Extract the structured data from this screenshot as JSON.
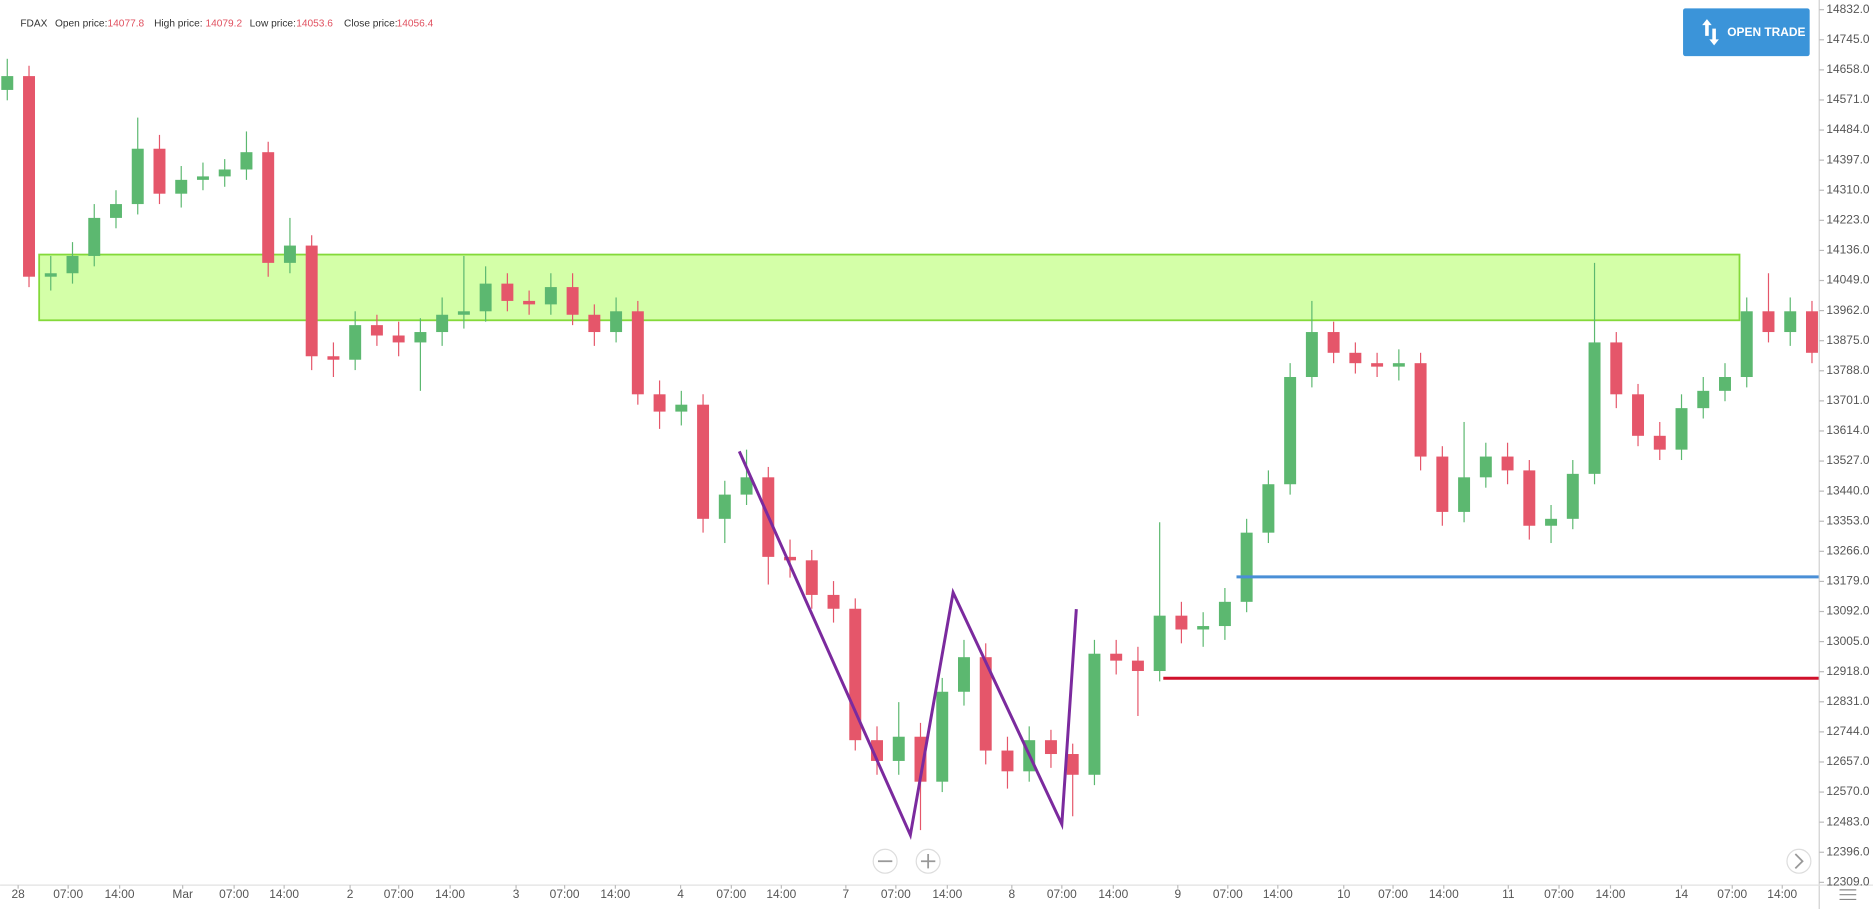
{
  "header": {
    "symbol": "FDAX",
    "open_label": "Open price:",
    "open": 14077.8,
    "high_label": "High price:",
    "high": 14079.2,
    "low_label": "Low price:",
    "low": 14053.6,
    "close_label": "Close price:",
    "close": 14056.4
  },
  "button": "OPEN TRADE",
  "chart_data": {
    "type": "candlestick",
    "up_color": "#5cb870",
    "down_color": "#e5566a",
    "xlim": [
      0,
      251
    ],
    "ylim": [
      12301,
      14860
    ],
    "xticks": [
      {
        "value": 2.5,
        "label": "28"
      },
      {
        "value": 9.4,
        "label": "07:00"
      },
      {
        "value": 16.5,
        "label": "14:00"
      },
      {
        "value": 25.2,
        "label": "Mar"
      },
      {
        "value": 32.3,
        "label": "07:00"
      },
      {
        "value": 39.2,
        "label": "14:00"
      },
      {
        "value": 48.3,
        "label": "2"
      },
      {
        "value": 55.0,
        "label": "07:00"
      },
      {
        "value": 62.1,
        "label": "14:00"
      },
      {
        "value": 71.2,
        "label": "3"
      },
      {
        "value": 77.9,
        "label": "07:00"
      },
      {
        "value": 84.9,
        "label": "14:00"
      },
      {
        "value": 93.9,
        "label": "4"
      },
      {
        "value": 100.9,
        "label": "07:00"
      },
      {
        "value": 107.8,
        "label": "14:00"
      },
      {
        "value": 116.7,
        "label": "7"
      },
      {
        "value": 123.6,
        "label": "07:00"
      },
      {
        "value": 130.7,
        "label": "14:00"
      },
      {
        "value": 139.6,
        "label": "8"
      },
      {
        "value": 146.5,
        "label": "07:00"
      },
      {
        "value": 153.6,
        "label": "14:00"
      },
      {
        "value": 162.5,
        "label": "9"
      },
      {
        "value": 169.4,
        "label": "07:00"
      },
      {
        "value": 176.3,
        "label": "14:00"
      },
      {
        "value": 185.4,
        "label": "10"
      },
      {
        "value": 192.2,
        "label": "07:00"
      },
      {
        "value": 199.2,
        "label": "14:00"
      },
      {
        "value": 208.1,
        "label": "11"
      },
      {
        "value": 215.1,
        "label": "07:00"
      },
      {
        "value": 222.2,
        "label": "14:00"
      },
      {
        "value": 232.0,
        "label": "14"
      },
      {
        "value": 239.0,
        "label": "07:00"
      },
      {
        "value": 245.9,
        "label": "14:00"
      }
    ],
    "yticks": [
      {
        "value": 12309,
        "label": "12309.0"
      },
      {
        "value": 12396,
        "label": "12396.0"
      },
      {
        "value": 12483,
        "label": "12483.0"
      },
      {
        "value": 12570,
        "label": "12570.0"
      },
      {
        "value": 12657,
        "label": "12657.0"
      },
      {
        "value": 12744,
        "label": "12744.0"
      },
      {
        "value": 12831,
        "label": "12831.0"
      },
      {
        "value": 12918,
        "label": "12918.0"
      },
      {
        "value": 13005,
        "label": "13005.0"
      },
      {
        "value": 13092,
        "label": "13092.0"
      },
      {
        "value": 13179,
        "label": "13179.0"
      },
      {
        "value": 13266,
        "label": "13266.0"
      },
      {
        "value": 13353,
        "label": "13353.0"
      },
      {
        "value": 13440,
        "label": "13440.0"
      },
      {
        "value": 13527,
        "label": "13527.0"
      },
      {
        "value": 13614,
        "label": "13614.0"
      },
      {
        "value": 13701,
        "label": "13701.0"
      },
      {
        "value": 13788,
        "label": "13788.0"
      },
      {
        "value": 13875,
        "label": "13875.0"
      },
      {
        "value": 13962,
        "label": "13962.0"
      },
      {
        "value": 14049,
        "label": "14049.0"
      },
      {
        "value": 14136,
        "label": "14136.0"
      },
      {
        "value": 14223,
        "label": "14223.0"
      },
      {
        "value": 14310,
        "label": "14310.0"
      },
      {
        "value": 14397,
        "label": "14397.0"
      },
      {
        "value": 14484,
        "label": "14484.0"
      },
      {
        "value": 14571,
        "label": "14571.0"
      },
      {
        "value": 14658,
        "label": "14658.0"
      },
      {
        "value": 14745,
        "label": "14745.0"
      },
      {
        "value": 14832,
        "label": "14832.0"
      }
    ],
    "x": [
      1,
      4,
      7,
      10,
      13,
      16,
      19,
      22,
      25,
      28,
      31,
      34,
      37,
      40,
      43,
      46,
      49,
      52,
      55,
      58,
      61,
      64,
      67,
      70,
      73,
      76,
      79,
      82,
      85,
      88,
      91,
      94,
      97,
      100,
      103,
      106,
      109,
      112,
      115,
      118,
      121,
      124,
      127,
      130,
      133,
      136,
      139,
      142,
      145,
      148,
      151,
      154,
      157,
      160,
      163,
      166,
      169,
      172,
      175,
      178,
      181,
      184,
      187,
      190,
      193,
      196,
      199,
      202,
      205,
      208,
      211,
      214,
      217,
      220,
      223,
      226,
      229,
      232,
      235,
      238,
      241,
      244,
      247,
      250
    ],
    "open": [
      14600,
      14640,
      14060,
      14070,
      14120,
      14230,
      14270,
      14430,
      14300,
      14340,
      14350,
      14370,
      14420,
      14100,
      14150,
      13830,
      13820,
      13920,
      13890,
      13870,
      13900,
      13950,
      13960,
      14040,
      13990,
      13980,
      14030,
      13950,
      13900,
      13960,
      13720,
      13670,
      13690,
      13360,
      13430,
      13480,
      13250,
      13240,
      13140,
      13100,
      12720,
      12660,
      12730,
      12600,
      12860,
      12960,
      12690,
      12630,
      12720,
      12680,
      12620,
      12970,
      12950,
      12920,
      13080,
      13040,
      13050,
      13120,
      13320,
      13460,
      13770,
      13900,
      13840,
      13810,
      13800,
      13810,
      13540,
      13380,
      13480,
      13540,
      13500,
      13340,
      13360,
      13490,
      13870,
      13720,
      13600,
      13560,
      13680,
      13730,
      13770,
      13960,
      13900,
      13960
    ],
    "high": [
      14690,
      14670,
      14120,
      14160,
      14270,
      14310,
      14520,
      14470,
      14380,
      14390,
      14400,
      14480,
      14450,
      14230,
      14180,
      13870,
      13960,
      13950,
      13930,
      13940,
      14000,
      14120,
      14090,
      14070,
      14020,
      14070,
      14070,
      13980,
      14000,
      13990,
      13760,
      13730,
      13720,
      13470,
      13560,
      13510,
      13300,
      13270,
      13180,
      13130,
      12760,
      12830,
      12770,
      12900,
      13010,
      13000,
      12730,
      12760,
      12750,
      12710,
      13010,
      13010,
      12990,
      13350,
      13120,
      13090,
      13160,
      13360,
      13500,
      13810,
      13990,
      13930,
      13870,
      13840,
      13850,
      13840,
      13570,
      13640,
      13580,
      13580,
      13530,
      13400,
      13530,
      14100,
      13900,
      13750,
      13640,
      13720,
      13770,
      13810,
      14000,
      14070,
      14000,
      13990
    ],
    "low": [
      14570,
      14030,
      14020,
      14040,
      14090,
      14200,
      14240,
      14270,
      14260,
      14310,
      14320,
      14340,
      14060,
      14070,
      13790,
      13770,
      13790,
      13860,
      13830,
      13730,
      13860,
      13910,
      13930,
      13960,
      13950,
      13950,
      13920,
      13860,
      13870,
      13690,
      13620,
      13630,
      13320,
      13290,
      13400,
      13170,
      13190,
      13100,
      13060,
      12690,
      12620,
      12620,
      12460,
      12570,
      12820,
      12650,
      12580,
      12600,
      12640,
      12500,
      12590,
      12910,
      12790,
      12890,
      13000,
      12990,
      13010,
      13090,
      13290,
      13430,
      13740,
      13810,
      13780,
      13770,
      13760,
      13500,
      13340,
      13350,
      13450,
      13460,
      13300,
      13290,
      13330,
      13460,
      13680,
      13570,
      13530,
      13530,
      13650,
      13700,
      13740,
      13870,
      13860,
      13810
    ],
    "close": [
      14640,
      14060,
      14070,
      14120,
      14230,
      14270,
      14430,
      14300,
      14340,
      14350,
      14370,
      14420,
      14100,
      14150,
      13830,
      13820,
      13920,
      13890,
      13870,
      13900,
      13950,
      13960,
      14040,
      13990,
      13980,
      14030,
      13950,
      13900,
      13960,
      13720,
      13670,
      13690,
      13360,
      13430,
      13480,
      13250,
      13240,
      13140,
      13100,
      12720,
      12660,
      12730,
      12600,
      12860,
      12960,
      12690,
      12630,
      12720,
      12680,
      12620,
      12970,
      12950,
      12920,
      13080,
      13040,
      13050,
      13120,
      13320,
      13460,
      13770,
      13900,
      13840,
      13810,
      13800,
      13810,
      13540,
      13380,
      13480,
      13540,
      13500,
      13340,
      13360,
      13490,
      13870,
      13720,
      13600,
      13560,
      13680,
      13730,
      13770,
      13960,
      13900,
      13960,
      13840
    ],
    "zone": {
      "x": [
        5.4,
        240
      ],
      "y": [
        13934,
        14124
      ],
      "color": "#ccff99",
      "edge": "#84d93a"
    },
    "lines": [
      {
        "x": [
          170.6,
          251
        ],
        "y": [
          13192,
          13192
        ],
        "color": "#4a8fd6"
      },
      {
        "x": [
          160.5,
          251
        ],
        "y": [
          12899,
          12899
        ],
        "color": "#d0112b"
      },
      {
        "x": [
          102,
          125.6,
          131.5,
          146.5,
          148.5
        ],
        "y": [
          13555,
          12446,
          13147,
          12477,
          13099
        ],
        "color": "#7b2a9e"
      }
    ]
  }
}
